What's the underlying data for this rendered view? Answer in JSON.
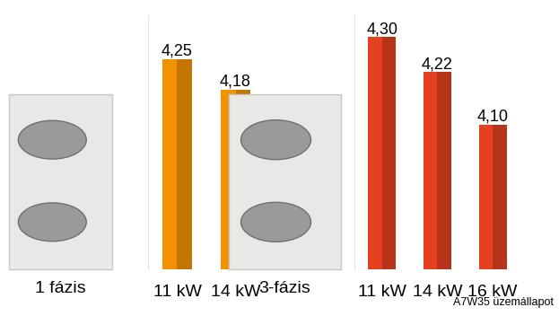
{
  "chart_data": [
    {
      "type": "bar",
      "xlabel": "1 fázis",
      "categories": [
        "11 kW",
        "14 kW"
      ],
      "values": [
        4.25,
        4.18
      ],
      "value_labels": [
        "4,25",
        "4,18"
      ],
      "color": "#f39200",
      "ylim": [
        3.77,
        4.35
      ],
      "yticks": [],
      "tick_labels": "x",
      "data_labels": true
    },
    {
      "type": "bar",
      "xlabel": "3-fázis",
      "categories": [
        "11 kW",
        "14 kW",
        "16 kW"
      ],
      "values": [
        4.3,
        4.22,
        4.1
      ],
      "value_labels": [
        "4,30",
        "4,22",
        "4,10"
      ],
      "color": "#e5401f",
      "ylim": [
        3.77,
        4.35
      ],
      "yticks": [],
      "tick_labels": "x",
      "data_labels": true,
      "note": "A7W35 üzemállapot"
    }
  ]
}
